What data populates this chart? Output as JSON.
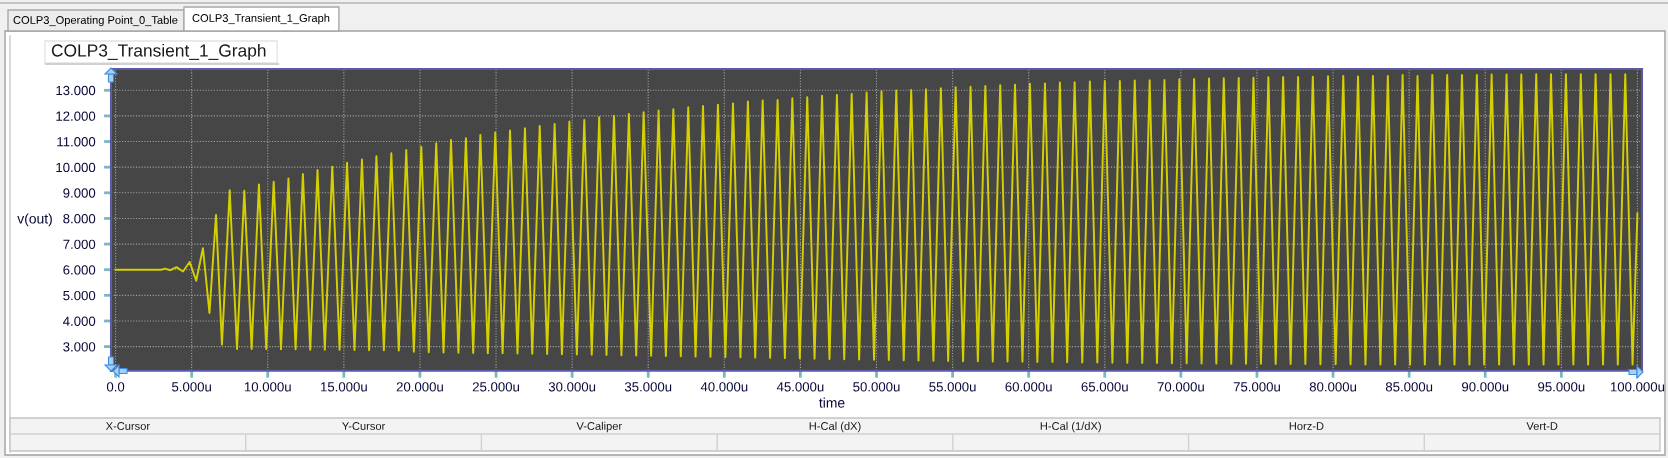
{
  "chart_data": {
    "type": "line",
    "title": "COLP3_Transient_1_Graph",
    "xlabel": "time",
    "ylabel": "v(out)",
    "annotations": [
      "COLP3_Operating Point_0_Table",
      "COLP3_Transient_1_Graph",
      "X-Cursor",
      "Y-Cursor",
      "V-Caliper",
      "H-Cal (dX)",
      "H-Cal (1/dX)",
      "Horz-D",
      "Vert-D"
    ],
    "xlim": [
      -0.3,
      100.3
    ],
    "ylim": [
      2.06,
      13.83
    ],
    "xticks": [
      {
        "value": 0,
        "label": "0.0"
      },
      {
        "value": 5,
        "label": "5.000u"
      },
      {
        "value": 10,
        "label": "10.000u"
      },
      {
        "value": 15,
        "label": "15.000u"
      },
      {
        "value": 20,
        "label": "20.000u"
      },
      {
        "value": 25,
        "label": "25.000u"
      },
      {
        "value": 30,
        "label": "30.000u"
      },
      {
        "value": 35,
        "label": "35.000u"
      },
      {
        "value": 40,
        "label": "40.000u"
      },
      {
        "value": 45,
        "label": "45.000u"
      },
      {
        "value": 50,
        "label": "50.000u"
      },
      {
        "value": 55,
        "label": "55.000u"
      },
      {
        "value": 60,
        "label": "60.000u"
      },
      {
        "value": 65,
        "label": "65.000u"
      },
      {
        "value": 70,
        "label": "70.000u"
      },
      {
        "value": 75,
        "label": "75.000u"
      },
      {
        "value": 80,
        "label": "80.000u"
      },
      {
        "value": 85,
        "label": "85.000u"
      },
      {
        "value": 90,
        "label": "90.000u"
      },
      {
        "value": 95,
        "label": "95.000u"
      },
      {
        "value": 100,
        "label": "100.000u"
      }
    ],
    "yticks": [
      {
        "value": 3,
        "label": "3.000"
      },
      {
        "value": 4,
        "label": "4.000"
      },
      {
        "value": 5,
        "label": "5.000"
      },
      {
        "value": 6,
        "label": "6.000"
      },
      {
        "value": 7,
        "label": "7.000"
      },
      {
        "value": 8,
        "label": "8.000"
      },
      {
        "value": 9,
        "label": "9.000"
      },
      {
        "value": 10,
        "label": "10.000"
      },
      {
        "value": 11,
        "label": "11.000"
      },
      {
        "value": 12,
        "label": "12.000"
      },
      {
        "value": 13,
        "label": "13.000"
      }
    ],
    "grid": true,
    "series": [
      {
        "color": "#d4cf00",
        "x": [
          0,
          3.0,
          3.25,
          3.6,
          4.0,
          4.43,
          4.87,
          5.3,
          5.74,
          6.17,
          6.6,
          6.99,
          7.5,
          7.98,
          8.46,
          8.94,
          9.42,
          9.9,
          10.39,
          10.87,
          11.36,
          11.83,
          12.31,
          12.79,
          13.27,
          13.75,
          14.24,
          14.72,
          15.21,
          15.7,
          16.19,
          16.66,
          17.14,
          17.63,
          18.12,
          18.61,
          19.1,
          19.6,
          20.09,
          20.58,
          21.07,
          21.55,
          22.04,
          22.53,
          23.02,
          23.5,
          23.97,
          24.46,
          24.95,
          25.43,
          25.92,
          26.41,
          26.9,
          27.38,
          27.87,
          28.36,
          28.85,
          29.33,
          29.82,
          30.31,
          30.8,
          31.29,
          31.78,
          32.26,
          32.75,
          33.24,
          33.73,
          34.21,
          34.7,
          35.19,
          35.68,
          36.16,
          36.65,
          37.14,
          37.63,
          38.11,
          38.6,
          39.09,
          39.58,
          40.07,
          40.57,
          41.06,
          41.55,
          42.03,
          42.52,
          43.01,
          43.5,
          43.98,
          44.47,
          44.96,
          45.45,
          45.93,
          46.42,
          46.91,
          47.4,
          47.88,
          48.37,
          48.86,
          49.35,
          49.84,
          50.33,
          50.81,
          51.3,
          51.79,
          52.28,
          52.76,
          53.25,
          53.74,
          54.23,
          54.71,
          55.2,
          55.69,
          56.18,
          56.66,
          57.15,
          57.64,
          58.13,
          58.61,
          59.1,
          59.59,
          60.08,
          60.57,
          61.07,
          61.56,
          62.05,
          62.53,
          63.02,
          63.52,
          64.02,
          64.51,
          65.0,
          65.5,
          65.99,
          66.48,
          66.97,
          67.46,
          67.95,
          68.43,
          68.92,
          69.41,
          69.9,
          70.38,
          70.87,
          71.36,
          71.85,
          72.33,
          72.82,
          73.31,
          73.8,
          74.28,
          74.77,
          75.26,
          75.75,
          76.23,
          76.72,
          77.21,
          77.7,
          78.18,
          78.67,
          79.17,
          79.67,
          80.17,
          80.67,
          81.15,
          81.64,
          82.13,
          82.62,
          83.11,
          83.6,
          84.08,
          84.57,
          85.06,
          85.55,
          86.03,
          86.52,
          87.01,
          87.5,
          87.98,
          88.47,
          88.96,
          89.45,
          89.93,
          90.42,
          90.91,
          91.4,
          91.88,
          92.37,
          92.86,
          93.35,
          93.83,
          94.32,
          94.81,
          95.3,
          95.79,
          96.28,
          96.76,
          97.25,
          97.74,
          98.23,
          98.71,
          99.2,
          99.68,
          100.0
        ],
        "values": [
          6.0,
          6.0,
          6.04,
          5.98,
          6.1,
          5.93,
          6.3,
          5.57,
          6.84,
          4.31,
          8.14,
          3.08,
          9.1,
          2.91,
          9.08,
          2.91,
          9.33,
          2.91,
          9.43,
          2.9,
          9.56,
          2.9,
          9.73,
          2.88,
          9.89,
          2.88,
          10.02,
          2.88,
          10.17,
          2.87,
          10.3,
          2.86,
          10.43,
          2.86,
          10.54,
          2.85,
          10.67,
          2.8,
          10.8,
          2.78,
          10.93,
          2.77,
          11.06,
          2.76,
          11.13,
          2.75,
          11.26,
          2.74,
          11.35,
          2.74,
          11.43,
          2.73,
          11.52,
          2.72,
          11.61,
          2.71,
          11.69,
          2.7,
          11.78,
          2.69,
          11.84,
          2.68,
          11.95,
          2.67,
          12.01,
          2.66,
          12.08,
          2.65,
          12.14,
          2.64,
          12.21,
          2.63,
          12.26,
          2.62,
          12.34,
          2.61,
          12.39,
          2.6,
          12.44,
          2.59,
          12.49,
          2.58,
          12.56,
          2.57,
          12.6,
          2.56,
          12.62,
          2.55,
          12.69,
          2.54,
          12.73,
          2.53,
          12.79,
          2.52,
          12.82,
          2.51,
          12.86,
          2.5,
          12.91,
          2.49,
          12.95,
          2.48,
          12.99,
          2.47,
          13.01,
          2.46,
          13.04,
          2.45,
          13.08,
          2.44,
          13.12,
          2.43,
          13.14,
          2.43,
          13.17,
          2.42,
          13.2,
          2.42,
          13.22,
          2.41,
          13.26,
          2.4,
          13.27,
          2.4,
          13.3,
          2.39,
          13.31,
          2.38,
          13.34,
          2.38,
          13.36,
          2.37,
          13.36,
          2.37,
          13.38,
          2.36,
          13.39,
          2.36,
          13.4,
          2.35,
          13.43,
          2.35,
          13.44,
          2.34,
          13.46,
          2.34,
          13.47,
          2.33,
          13.48,
          2.33,
          13.49,
          2.33,
          13.51,
          2.32,
          13.52,
          2.32,
          13.52,
          2.32,
          13.53,
          2.31,
          13.55,
          2.31,
          13.56,
          2.31,
          13.54,
          2.3,
          13.56,
          2.3,
          13.56,
          2.3,
          13.6,
          2.3,
          13.56,
          2.3,
          13.6,
          2.3,
          13.6,
          2.3,
          13.6,
          2.3,
          13.6,
          2.3,
          13.62,
          2.3,
          13.62,
          2.3,
          13.62,
          2.3,
          13.63,
          2.3,
          13.63,
          2.3,
          13.63,
          2.3,
          13.63,
          2.3,
          13.63,
          2.3,
          13.63,
          2.3,
          13.63,
          2.3,
          8.2
        ]
      }
    ]
  }
}
